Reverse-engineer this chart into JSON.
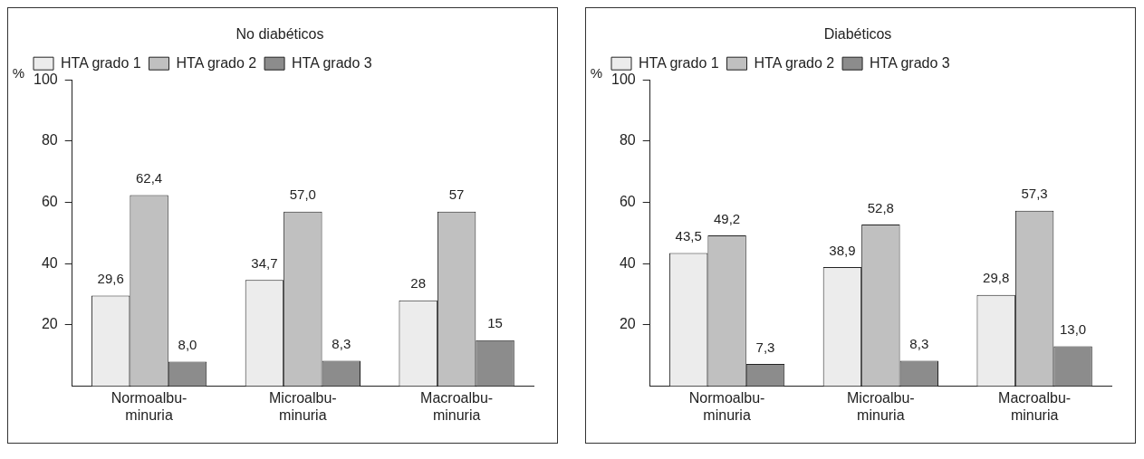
{
  "chart_data": [
    {
      "type": "bar",
      "title": "No diabéticos",
      "ylabel": "%",
      "categories": [
        "Normoalbu-minuria",
        "Microalbu-minuria",
        "Macroalbu-minuria"
      ],
      "ylim": [
        0,
        100
      ],
      "yticks": [
        20,
        40,
        60,
        80,
        100
      ],
      "grid": false,
      "legend": "top left",
      "series": [
        {
          "name": "HTA grado 1",
          "color": "#ececec",
          "values": [
            29.6,
            34.7,
            28
          ],
          "value_labels": [
            "29,6",
            "34,7",
            "28"
          ]
        },
        {
          "name": "HTA grado 2",
          "color": "#c0c0c0",
          "values": [
            62.4,
            57.0,
            57
          ],
          "value_labels": [
            "62,4",
            "57,0",
            "57"
          ]
        },
        {
          "name": "HTA grado 3",
          "color": "#8c8c8c",
          "values": [
            8.0,
            8.3,
            15
          ],
          "value_labels": [
            "8,0",
            "8,3",
            "15"
          ]
        }
      ]
    },
    {
      "type": "bar",
      "title": "Diabéticos",
      "ylabel": "%",
      "categories": [
        "Normoalbu-minuria",
        "Microalbu-minuria",
        "Macroalbu-minuria"
      ],
      "ylim": [
        0,
        100
      ],
      "yticks": [
        20,
        40,
        60,
        80,
        100
      ],
      "grid": false,
      "legend": "top left",
      "series": [
        {
          "name": "HTA grado 1",
          "color": "#ececec",
          "values": [
            43.5,
            38.9,
            29.8
          ],
          "value_labels": [
            "43,5",
            "38,9",
            "29,8"
          ]
        },
        {
          "name": "HTA grado 2",
          "color": "#c0c0c0",
          "values": [
            49.2,
            52.8,
            57.3
          ],
          "value_labels": [
            "49,2",
            "52,8",
            "57,3"
          ]
        },
        {
          "name": "HTA grado 3",
          "color": "#8c8c8c",
          "values": [
            7.3,
            8.3,
            13.0
          ],
          "value_labels": [
            "7,3",
            "8,3",
            "13,0"
          ]
        }
      ]
    }
  ]
}
